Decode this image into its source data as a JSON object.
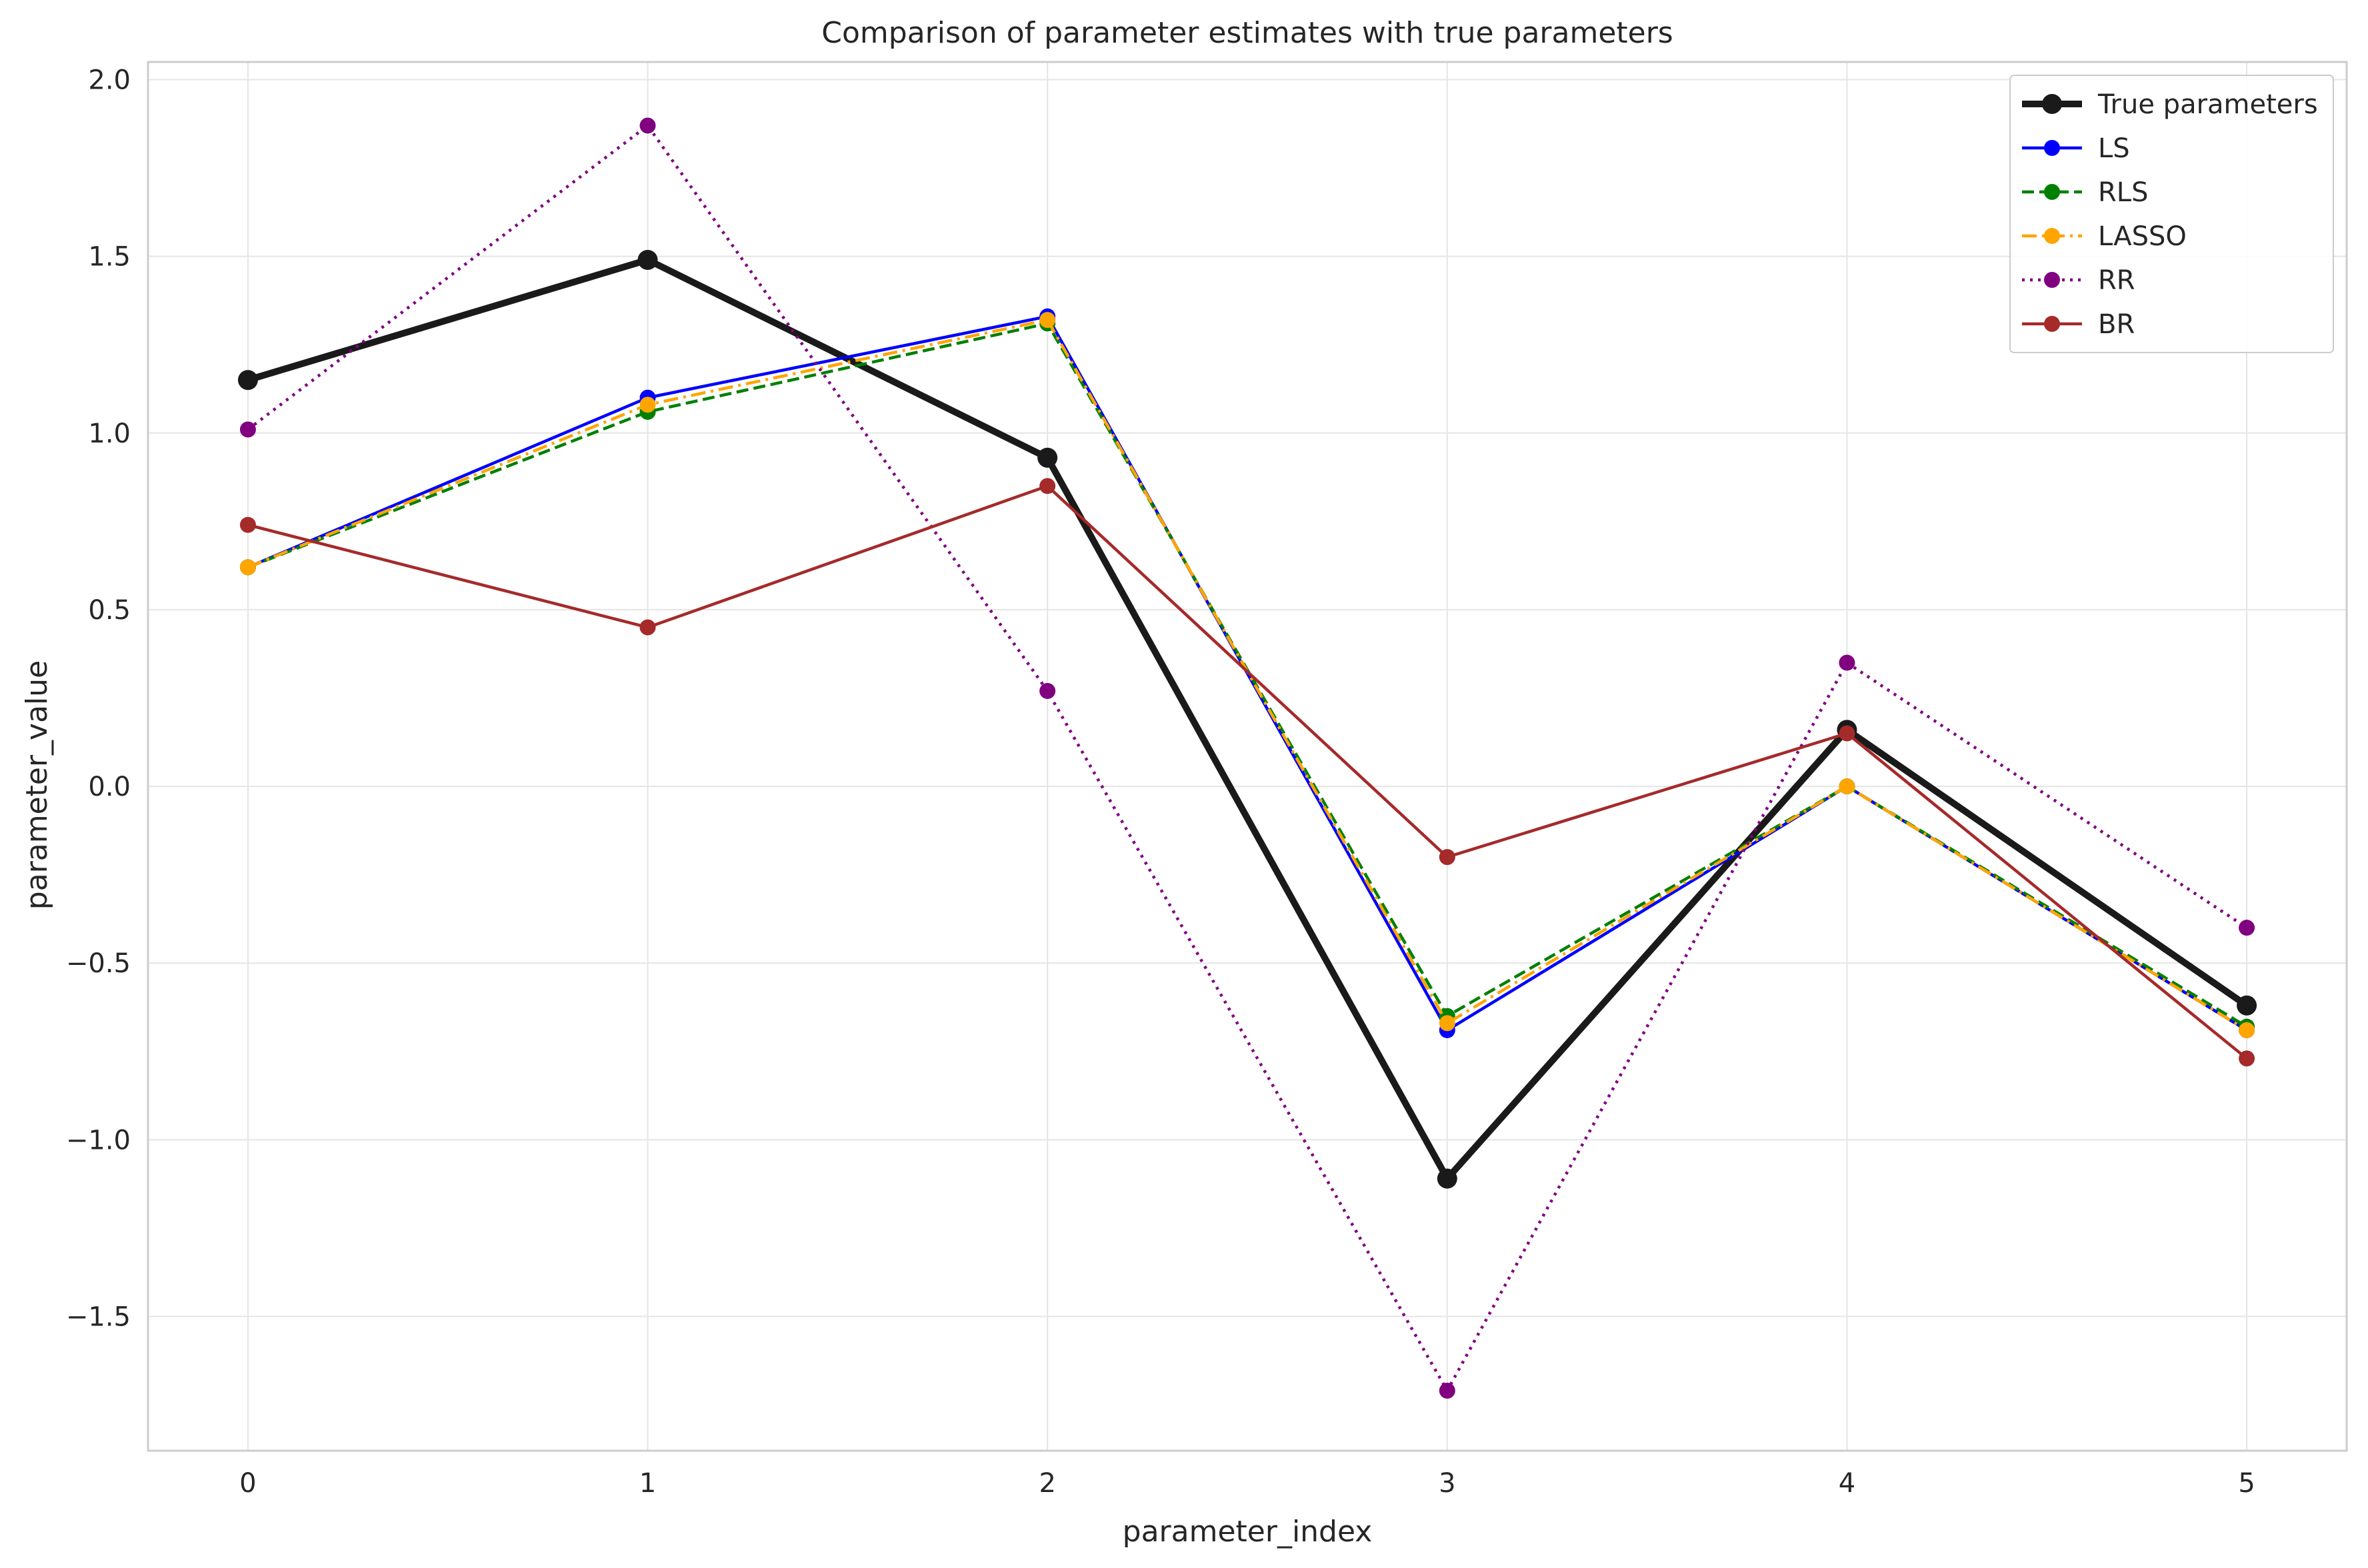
{
  "chart_data": {
    "type": "line",
    "title": "Comparison of parameter estimates with true parameters",
    "xlabel": "parameter_index",
    "ylabel": "parameter_value",
    "x": [
      0,
      1,
      2,
      3,
      4,
      5
    ],
    "xlim": [
      -0.25,
      5.25
    ],
    "ylim": [
      -1.88,
      2.05
    ],
    "xticks": [
      0,
      1,
      2,
      3,
      4,
      5
    ],
    "yticks": [
      -1.5,
      -1.0,
      -0.5,
      0.0,
      0.5,
      1.0,
      1.5,
      2.0
    ],
    "ytick_labels": [
      "−1.5",
      "−1.0",
      "−0.5",
      "0.0",
      "0.5",
      "1.0",
      "1.5",
      "2.0"
    ],
    "grid": true,
    "legend_position": "top-right",
    "series": [
      {
        "name": "True parameters",
        "color": "#1a1a1a",
        "style": "solid",
        "emphasis": "bold",
        "values": [
          1.15,
          1.49,
          0.93,
          -1.11,
          0.16,
          -0.62
        ]
      },
      {
        "name": "LS",
        "color": "#0000ff",
        "style": "solid",
        "emphasis": "normal",
        "values": [
          0.62,
          1.1,
          1.33,
          -0.69,
          0.0,
          -0.69
        ]
      },
      {
        "name": "RLS",
        "color": "#008000",
        "style": "dashed",
        "emphasis": "normal",
        "values": [
          0.62,
          1.06,
          1.31,
          -0.65,
          0.0,
          -0.68
        ]
      },
      {
        "name": "LASSO",
        "color": "#ffa500",
        "style": "dashdot",
        "emphasis": "normal",
        "values": [
          0.62,
          1.08,
          1.32,
          -0.67,
          0.0,
          -0.69
        ]
      },
      {
        "name": "RR",
        "color": "#800080",
        "style": "dotted",
        "emphasis": "normal",
        "values": [
          1.01,
          1.87,
          0.27,
          -1.71,
          0.35,
          -0.4
        ]
      },
      {
        "name": "BR",
        "color": "#a52a2a",
        "style": "solid",
        "emphasis": "normal",
        "values": [
          0.74,
          0.45,
          0.85,
          -0.2,
          0.15,
          -0.77
        ]
      }
    ]
  }
}
